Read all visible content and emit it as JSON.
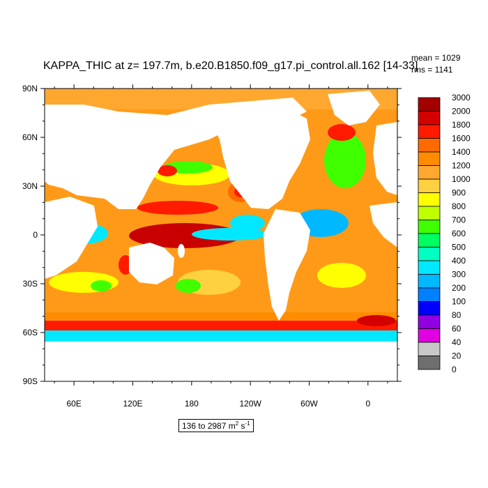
{
  "title": "KAPPA_THIC at z= 197.7m, b.e20.B1850.f09_g17.pi_control.all.162 [14-33]",
  "stats": {
    "mean": "mean = 1029",
    "rms": "rms = 1141"
  },
  "range": {
    "text": "136 to 2987 m",
    "exp1": "2",
    "mid": " s",
    "exp2": "-1"
  },
  "lat_ticks": [
    {
      "label": "90N",
      "value": 90
    },
    {
      "label": "60N",
      "value": 60
    },
    {
      "label": "30N",
      "value": 30
    },
    {
      "label": "0",
      "value": 0
    },
    {
      "label": "30S",
      "value": -30
    },
    {
      "label": "60S",
      "value": -60
    },
    {
      "label": "90S",
      "value": -90
    }
  ],
  "lon_ticks": [
    {
      "label": "60E",
      "value": 60
    },
    {
      "label": "120E",
      "value": 120
    },
    {
      "label": "180",
      "value": 180
    },
    {
      "label": "120W",
      "value": 240
    },
    {
      "label": "60W",
      "value": 300
    },
    {
      "label": "0",
      "value": 360
    }
  ],
  "map_extent": {
    "lon_min": 30,
    "lon_max": 390,
    "lat_min": -90,
    "lat_max": 90
  },
  "colorbar": [
    {
      "label": "3000",
      "color": "#a50000"
    },
    {
      "label": "2000",
      "color": "#d40000"
    },
    {
      "label": "1800",
      "color": "#ff1a00"
    },
    {
      "label": "1600",
      "color": "#ff6a00"
    },
    {
      "label": "1400",
      "color": "#ff8c00"
    },
    {
      "label": "1200",
      "color": "#ffa830"
    },
    {
      "label": "1000",
      "color": "#ffd040"
    },
    {
      "label": "900",
      "color": "#ffff00"
    },
    {
      "label": "800",
      "color": "#bfff00"
    },
    {
      "label": "700",
      "color": "#40ff00"
    },
    {
      "label": "600",
      "color": "#00ff60"
    },
    {
      "label": "500",
      "color": "#00ffc0"
    },
    {
      "label": "400",
      "color": "#00e8ff"
    },
    {
      "label": "300",
      "color": "#00b8ff"
    },
    {
      "label": "200",
      "color": "#0080ff"
    },
    {
      "label": "100",
      "color": "#0000ff"
    },
    {
      "label": "80",
      "color": "#9000e0"
    },
    {
      "label": "60",
      "color": "#e000e0"
    },
    {
      "label": "40",
      "color": "#c8c8c8"
    },
    {
      "label": "20",
      "color": "#6e6e6e"
    },
    {
      "label": "0",
      "color": ""
    }
  ]
}
